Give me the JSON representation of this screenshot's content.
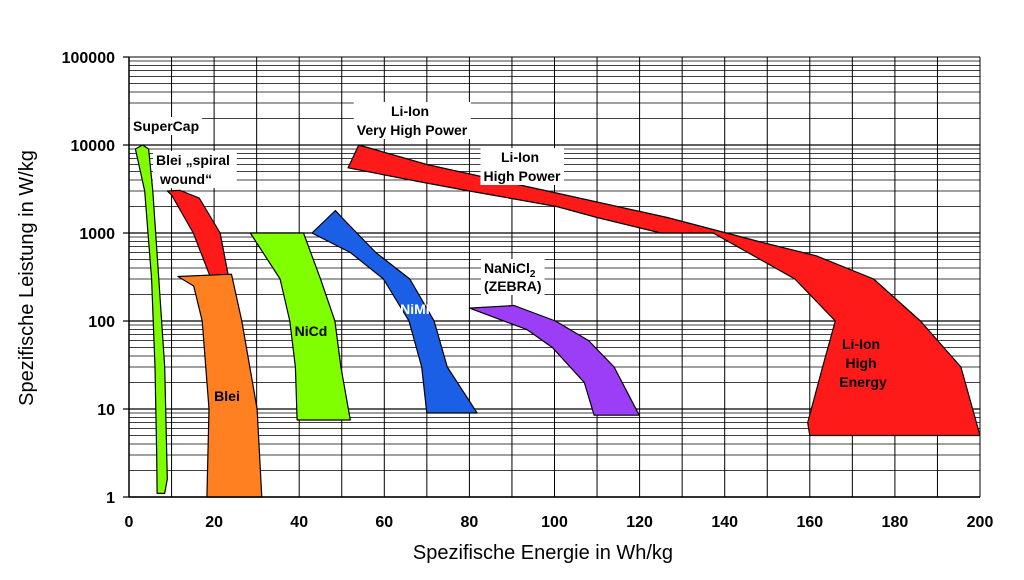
{
  "chart_data": {
    "type": "area",
    "xlabel": "Spezifische Energie in  Wh/kg",
    "ylabel": "Spezifische Leistung in W/kg",
    "xlim": [
      0,
      200
    ],
    "ylim": [
      1,
      100000
    ],
    "y_scale": "log",
    "x_ticks": [
      "0",
      "20",
      "40",
      "60",
      "80",
      "100",
      "120",
      "140",
      "160",
      "180",
      "200"
    ],
    "y_ticks": [
      "1",
      "10",
      "100",
      "1000",
      "10000",
      "100000"
    ],
    "grid": true,
    "series": [
      {
        "name": "SuperCap",
        "label_lines": [
          "SuperCap"
        ],
        "color": "#80ff00",
        "polygon": [
          [
            3.2,
            10000
          ],
          [
            1.5,
            9000
          ],
          [
            3.7,
            3000
          ],
          [
            5.3,
            300
          ],
          [
            6.1,
            30
          ],
          [
            6.5,
            3
          ],
          [
            6.6,
            1.1
          ],
          [
            8.4,
            1.1
          ],
          [
            9.0,
            1.6
          ],
          [
            8.4,
            30
          ],
          [
            7.0,
            300
          ],
          [
            5.6,
            3000
          ],
          [
            4.6,
            9000
          ]
        ]
      },
      {
        "name": "Blei „spiral wound“",
        "label_lines": [
          "Blei „spiral",
          "wound“"
        ],
        "color": "#ff1a1a",
        "polygon": [
          [
            9.0,
            3000
          ],
          [
            10.0,
            2700
          ],
          [
            15.1,
            1000
          ],
          [
            19.3,
            300
          ],
          [
            19.8,
            100
          ],
          [
            21.0,
            90
          ],
          [
            23.2,
            100
          ],
          [
            23.5,
            300
          ],
          [
            21.4,
            1000
          ],
          [
            16.5,
            2500
          ],
          [
            12.0,
            3050
          ]
        ]
      },
      {
        "name": "Blei",
        "label_lines": [
          "Blei"
        ],
        "color": "#ff8020",
        "polygon": [
          [
            11.5,
            320
          ],
          [
            24.1,
            340
          ],
          [
            26.5,
            100
          ],
          [
            30.1,
            10
          ],
          [
            31.2,
            1
          ],
          [
            18.3,
            1
          ],
          [
            18.8,
            10
          ],
          [
            17.2,
            100
          ],
          [
            15.2,
            250
          ]
        ]
      },
      {
        "name": "NiCd",
        "label_lines": [
          "NiCd"
        ],
        "color": "#80ff00",
        "polygon": [
          [
            28.5,
            1000
          ],
          [
            41.0,
            1000
          ],
          [
            45.0,
            300
          ],
          [
            48.4,
            100
          ],
          [
            49.8,
            30
          ],
          [
            52.0,
            7.5
          ],
          [
            39.5,
            7.5
          ],
          [
            39.1,
            30
          ],
          [
            37.8,
            100
          ],
          [
            35.5,
            300
          ]
        ]
      },
      {
        "name": "NiMH",
        "label_lines": [
          "NiMH"
        ],
        "color": "#1a5fe6",
        "polygon": [
          [
            43.0,
            1000
          ],
          [
            48.5,
            1800
          ],
          [
            50.0,
            1500
          ],
          [
            58.0,
            600
          ],
          [
            66.0,
            300
          ],
          [
            71.7,
            100
          ],
          [
            74.8,
            30
          ],
          [
            81.8,
            9
          ],
          [
            70.0,
            9
          ],
          [
            68.8,
            30
          ],
          [
            65.8,
            100
          ],
          [
            59.8,
            300
          ],
          [
            52.0,
            600
          ]
        ]
      },
      {
        "name": "NaNiCl2 (ZEBRA)",
        "label_lines": [
          "NaNiCl2",
          "(ZEBRA)"
        ],
        "color": "#9b3ef5",
        "polygon": [
          [
            80.0,
            140
          ],
          [
            90.5,
            150
          ],
          [
            100.2,
            100
          ],
          [
            108.0,
            60
          ],
          [
            114.0,
            30
          ],
          [
            119.9,
            8.5
          ],
          [
            109.3,
            8.5
          ],
          [
            107.0,
            20
          ],
          [
            99.5,
            50
          ],
          [
            93.5,
            80
          ]
        ]
      },
      {
        "name": "Li-Ion High Power",
        "label_lines": [
          "Li-Ion",
          "High Power"
        ],
        "color": "#ff1a1a",
        "polygon": [
          [
            51.5,
            5500
          ],
          [
            54.0,
            10000
          ],
          [
            70.0,
            6000
          ],
          [
            98.3,
            3000
          ],
          [
            126.5,
            1500
          ],
          [
            148.0,
            800
          ],
          [
            161.5,
            550
          ],
          [
            175.0,
            300
          ],
          [
            186.0,
            100
          ],
          [
            195.5,
            30
          ],
          [
            200.0,
            5
          ],
          [
            160.0,
            5
          ],
          [
            159.5,
            7
          ],
          [
            163.0,
            30
          ],
          [
            166.0,
            100
          ],
          [
            156.5,
            300
          ],
          [
            137.3,
            1000
          ],
          [
            125.0,
            1000
          ],
          [
            110.0,
            1500
          ],
          [
            100.5,
            2000
          ],
          [
            80.0,
            3000
          ],
          [
            68.6,
            3800
          ]
        ]
      }
    ],
    "annotations": [
      {
        "text": [
          "Li-Ion",
          "Very High Power"
        ]
      },
      {
        "text": [
          "Li-Ion",
          "High",
          "Energy"
        ]
      }
    ]
  }
}
